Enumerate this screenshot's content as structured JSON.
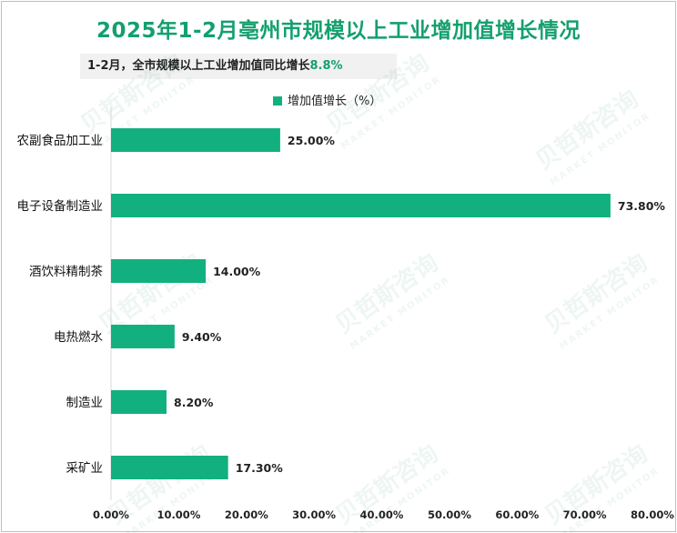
{
  "chart_data": {
    "type": "bar",
    "orientation": "horizontal",
    "title": "2025年1-2月亳州市规模以上工业增加值增长情况",
    "subtitle": {
      "text": "1-2月，全市规模以上工业增加值同比增长",
      "highlight": "8.8%"
    },
    "categories": [
      "农副食品加工业",
      "电子设备制造业",
      "酒饮料精制茶",
      "电热燃水",
      "制造业",
      "采矿业"
    ],
    "series": [
      {
        "name": "增加值增长（%）",
        "values": [
          25.0,
          73.8,
          14.0,
          9.4,
          8.2,
          17.3
        ]
      }
    ],
    "data_labels": [
      "25.00%",
      "73.80%",
      "14.00%",
      "9.40%",
      "8.20%",
      "17.30%"
    ],
    "xlim": [
      0,
      80
    ],
    "xticks": [
      "0.00%",
      "10.00%",
      "20.00%",
      "30.00%",
      "40.00%",
      "50.00%",
      "60.00%",
      "70.00%",
      "80.00%"
    ],
    "legend_position": "top",
    "grid": false,
    "colors": {
      "bar": "#13b07f",
      "title": "#14a06e",
      "highlight": "#14a06e"
    }
  },
  "watermark": {
    "cn": "贝哲斯咨询",
    "en": "MARKET MONITOR"
  }
}
